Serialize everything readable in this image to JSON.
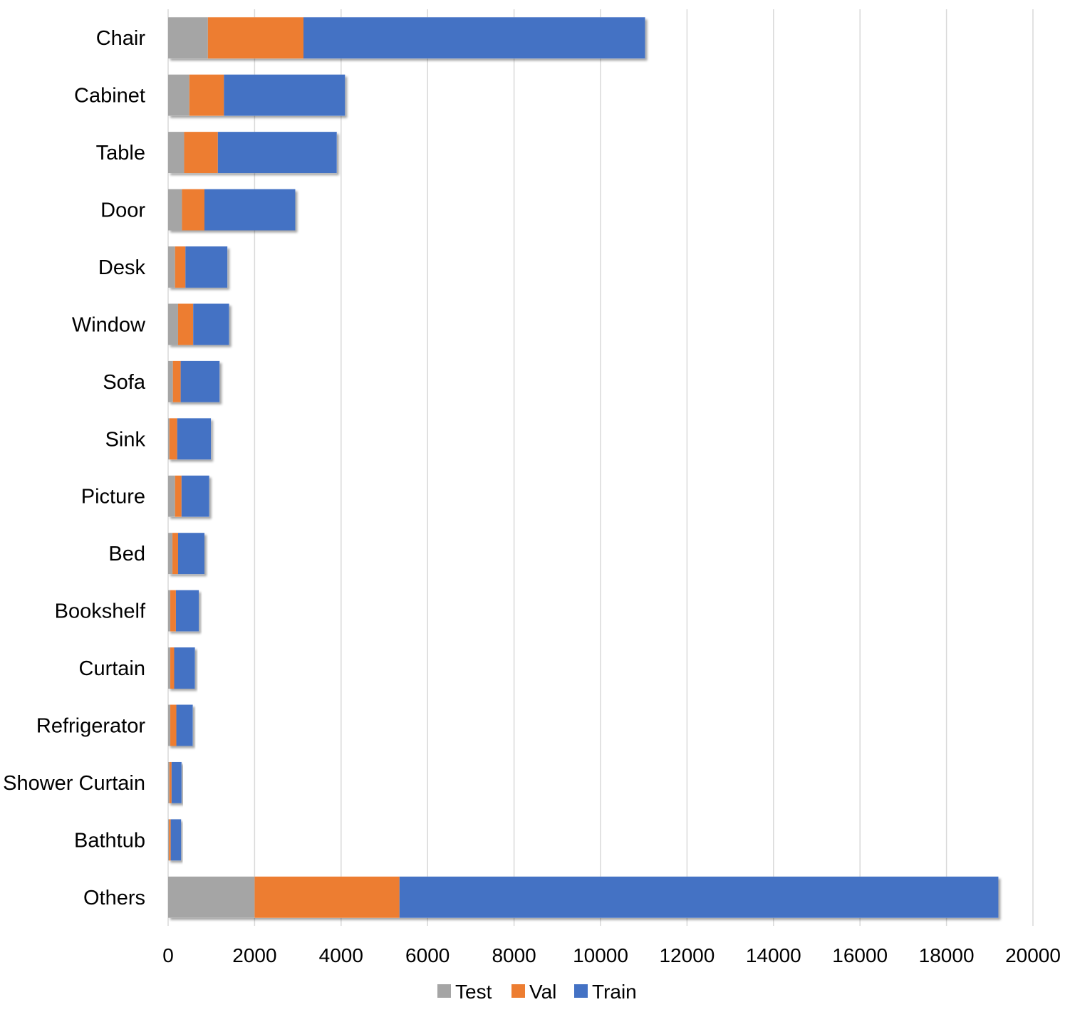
{
  "chart_data": {
    "type": "bar",
    "orientation": "horizontal",
    "stacked": true,
    "title": "",
    "xlabel": "",
    "ylabel": "",
    "xlim": [
      0,
      20000
    ],
    "x_ticks": [
      0,
      2000,
      4000,
      6000,
      8000,
      10000,
      12000,
      14000,
      16000,
      18000,
      20000
    ],
    "grid": "vertical",
    "legend_position": "bottom",
    "categories": [
      "Chair",
      "Cabinet",
      "Table",
      "Door",
      "Desk",
      "Window",
      "Sofa",
      "Sink",
      "Picture",
      "Bed",
      "Bookshelf",
      "Curtain",
      "Refrigerator",
      "Shower Curtain",
      "Bathtub",
      "Others"
    ],
    "series": [
      {
        "name": "Test",
        "color": "#A5A5A5",
        "values": [
          920,
          490,
          370,
          320,
          160,
          230,
          110,
          30,
          160,
          100,
          50,
          50,
          50,
          30,
          20,
          2000
        ]
      },
      {
        "name": "Val",
        "color": "#ED7D31",
        "values": [
          2210,
          800,
          780,
          520,
          240,
          350,
          180,
          180,
          150,
          130,
          130,
          90,
          140,
          50,
          40,
          3350
        ]
      },
      {
        "name": "Train",
        "color": "#4472C4",
        "values": [
          7900,
          2800,
          2750,
          2100,
          970,
          830,
          900,
          780,
          640,
          610,
          530,
          480,
          380,
          230,
          240,
          13850
        ]
      }
    ]
  }
}
